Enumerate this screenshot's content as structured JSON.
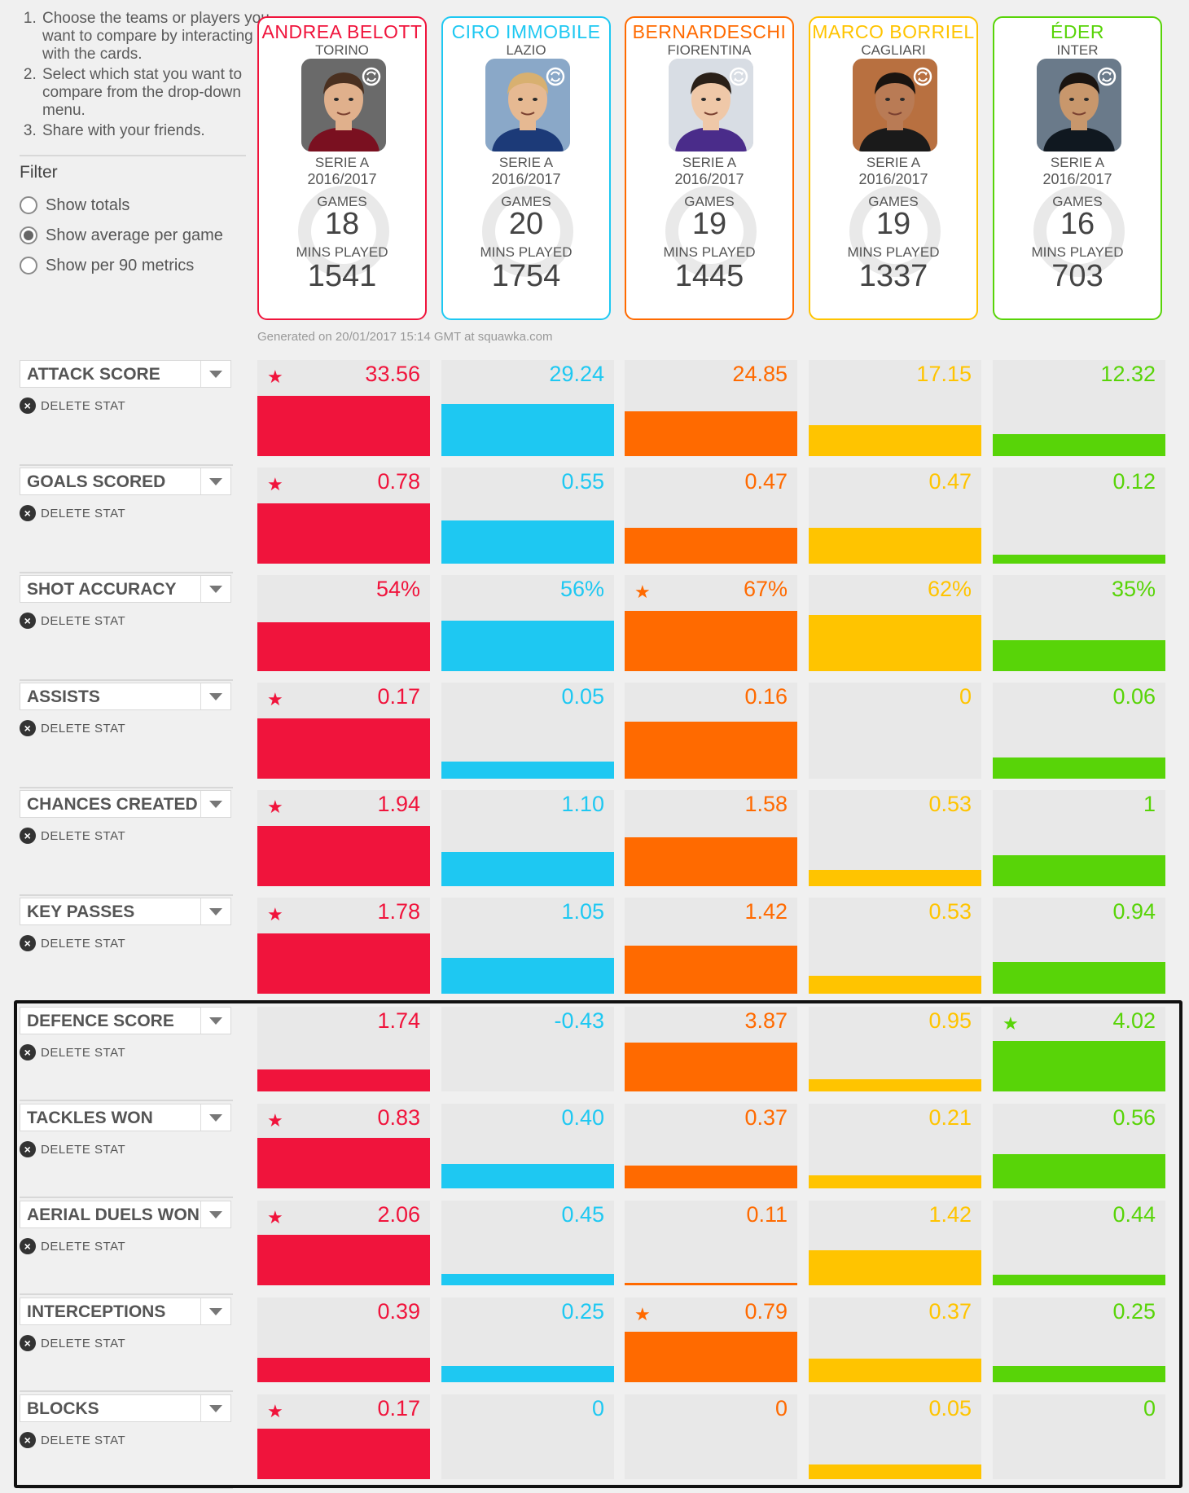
{
  "instructions": [
    "Choose the teams or players you want to compare by interacting with the cards.",
    "Select which stat you want to compare from the drop-down menu.",
    "Share with your friends."
  ],
  "filter": {
    "title": "Filter",
    "options": [
      "Show totals",
      "Show average per game",
      "Show per 90 metrics"
    ],
    "selected": "Show average per game"
  },
  "players": [
    {
      "name": "ANDREA BELOTT",
      "team": "TORINO",
      "league": "SERIE A",
      "season": "2016/2017",
      "games_label": "GAMES",
      "games": "18",
      "mins_label": "MINS PLAYED",
      "mins": "1541",
      "color": "#f0143c"
    },
    {
      "name": "CIRO IMMOBILE",
      "team": "LAZIO",
      "league": "SERIE A",
      "season": "2016/2017",
      "games_label": "GAMES",
      "games": "20",
      "mins_label": "MINS PLAYED",
      "mins": "1754",
      "color": "#1ec8f2"
    },
    {
      "name": "BERNARDESCHI",
      "team": "FIORENTINA",
      "league": "SERIE A",
      "season": "2016/2017",
      "games_label": "GAMES",
      "games": "19",
      "mins_label": "MINS PLAYED",
      "mins": "1445",
      "color": "#ff6a00"
    },
    {
      "name": "MARCO BORRIEL",
      "team": "CAGLIARI",
      "league": "SERIE A",
      "season": "2016/2017",
      "games_label": "GAMES",
      "games": "19",
      "mins_label": "MINS PLAYED",
      "mins": "1337",
      "color": "#ffc400"
    },
    {
      "name": "ÉDER",
      "team": "INTER",
      "league": "SERIE A",
      "season": "2016/2017",
      "games_label": "GAMES",
      "games": "16",
      "mins_label": "MINS PLAYED",
      "mins": "703",
      "color": "#58d408"
    }
  ],
  "generated": "Generated on 20/01/2017 15:14 GMT at squawka.com",
  "delete_label": "DELETE STAT",
  "stats": [
    {
      "label": "ATTACK SCORE",
      "values": [
        "33.56",
        "29.24",
        "24.85",
        "17.15",
        "12.32"
      ],
      "fills": [
        1.0,
        0.87,
        0.74,
        0.51,
        0.37
      ],
      "star": 0
    },
    {
      "label": "GOALS SCORED",
      "values": [
        "0.78",
        "0.55",
        "0.47",
        "0.47",
        "0.12"
      ],
      "fills": [
        1.0,
        0.71,
        0.6,
        0.6,
        0.15
      ],
      "star": 0
    },
    {
      "label": "SHOT ACCURACY",
      "values": [
        "54%",
        "56%",
        "67%",
        "62%",
        "35%"
      ],
      "fills": [
        0.81,
        0.84,
        1.0,
        0.93,
        0.52
      ],
      "star": 2
    },
    {
      "label": "ASSISTS",
      "values": [
        "0.17",
        "0.05",
        "0.16",
        "0",
        "0.06"
      ],
      "fills": [
        1.0,
        0.29,
        0.94,
        0.0,
        0.35
      ],
      "star": 0
    },
    {
      "label": "CHANCES CREATED",
      "values": [
        "1.94",
        "1.10",
        "1.58",
        "0.53",
        "1"
      ],
      "fills": [
        1.0,
        0.57,
        0.81,
        0.27,
        0.52
      ],
      "star": 0
    },
    {
      "label": "KEY PASSES",
      "values": [
        "1.78",
        "1.05",
        "1.42",
        "0.53",
        "0.94"
      ],
      "fills": [
        1.0,
        0.59,
        0.8,
        0.3,
        0.53
      ],
      "star": 0
    },
    {
      "label": "DEFENCE SCORE",
      "values": [
        "1.74",
        "-0.43",
        "3.87",
        "0.95",
        "4.02"
      ],
      "fills": [
        0.43,
        0.0,
        0.96,
        0.24,
        1.0
      ],
      "star": 4
    },
    {
      "label": "TACKLES WON",
      "values": [
        "0.83",
        "0.40",
        "0.37",
        "0.21",
        "0.56"
      ],
      "fills": [
        1.0,
        0.48,
        0.45,
        0.25,
        0.67
      ],
      "star": 0
    },
    {
      "label": "AERIAL DUELS WON",
      "values": [
        "2.06",
        "0.45",
        "0.11",
        "1.42",
        "0.44"
      ],
      "fills": [
        1.0,
        0.22,
        0.05,
        0.69,
        0.21
      ],
      "star": 0
    },
    {
      "label": "INTERCEPTIONS",
      "values": [
        "0.39",
        "0.25",
        "0.79",
        "0.37",
        "0.25"
      ],
      "fills": [
        0.49,
        0.32,
        1.0,
        0.47,
        0.32
      ],
      "star": 2
    },
    {
      "label": "BLOCKS",
      "values": [
        "0.17",
        "0",
        "0",
        "0.05",
        "0"
      ],
      "fills": [
        1.0,
        0.0,
        0.0,
        0.29,
        0.0
      ],
      "star": 0
    }
  ]
}
